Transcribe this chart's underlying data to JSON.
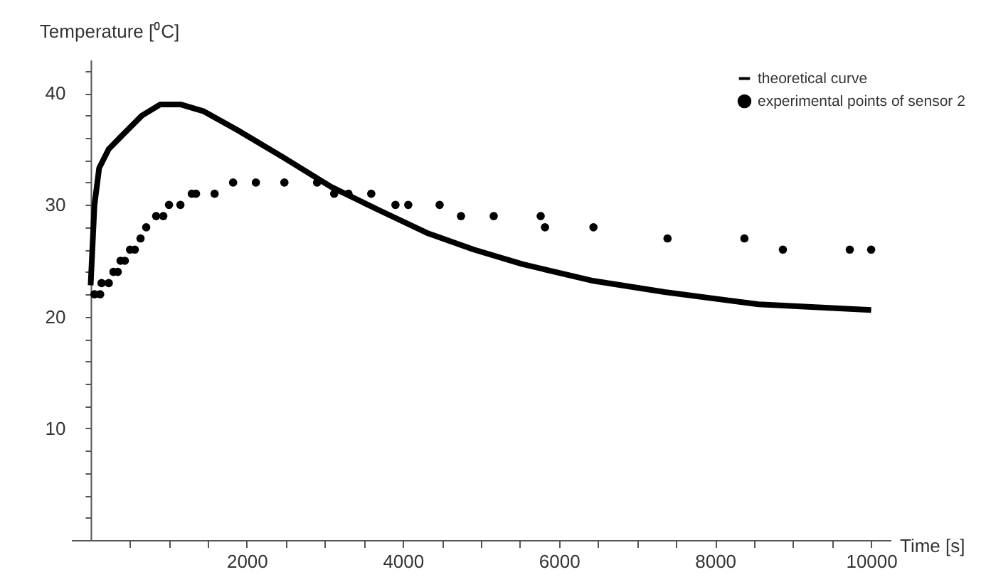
{
  "chart_data": {
    "type": "scatter",
    "xlabel": "Time [s]",
    "ylabel": "Temperature [⁰C]",
    "xlim": [
      -250,
      10250
    ],
    "ylim": [
      0,
      43
    ],
    "xticks": [
      {
        "value": 500,
        "label": null
      },
      {
        "value": 1000,
        "label": null
      },
      {
        "value": 1500,
        "label": null
      },
      2000,
      {
        "value": 2500,
        "label": null
      },
      {
        "value": 3000,
        "label": null
      },
      {
        "value": 3500,
        "label": null
      },
      4000,
      {
        "value": 4500,
        "label": null
      },
      {
        "value": 5000,
        "label": null
      },
      {
        "value": 5500,
        "label": null
      },
      6000,
      {
        "value": 6500,
        "label": null
      },
      {
        "value": 7000,
        "label": null
      },
      {
        "value": 7500,
        "label": null
      },
      8000,
      {
        "value": 8500,
        "label": null
      },
      {
        "value": 9000,
        "label": null
      },
      {
        "value": 9500,
        "label": null
      },
      10000
    ],
    "yticks": [
      {
        "value": 2,
        "label": null
      },
      {
        "value": 4,
        "label": null
      },
      {
        "value": 6,
        "label": null
      },
      {
        "value": 8,
        "label": null
      },
      10,
      {
        "value": 12,
        "label": null
      },
      {
        "value": 14,
        "label": null
      },
      {
        "value": 16,
        "label": null
      },
      {
        "value": 18,
        "label": null
      },
      20,
      {
        "value": 22,
        "label": null
      },
      {
        "value": 24,
        "label": null
      },
      {
        "value": 26,
        "label": null
      },
      {
        "value": 28,
        "label": null
      },
      30,
      {
        "value": 32,
        "label": null
      },
      {
        "value": 34,
        "label": null
      },
      {
        "value": 36,
        "label": null
      },
      {
        "value": 38,
        "label": null
      },
      40,
      {
        "value": 42,
        "label": null
      }
    ],
    "grid": false,
    "legend": "top right",
    "series": [
      {
        "name": "theoretical curve",
        "type": "line",
        "color": "#000000",
        "marker": "none",
        "line_style": "solid",
        "x": [
          0,
          49,
          109,
          232,
          414,
          657,
          894,
          1150,
          1442,
          1880,
          2482,
          3084,
          3704,
          4307,
          4909,
          5529,
          6442,
          7354,
          8558,
          10000
        ],
        "values": [
          22.8,
          30,
          33.3,
          35,
          36.3,
          38,
          39,
          39,
          38.4,
          36.7,
          34.2,
          31.6,
          29.5,
          27.5,
          26,
          24.7,
          23.2,
          22.2,
          21.1,
          20.6
        ]
      },
      {
        "name": "experimental points of sensor 2",
        "type": "scatter",
        "color": "#000000",
        "marker": "circle",
        "x": [
          49,
          122,
          140,
          232,
          292,
          347,
          383,
          438,
          505,
          566,
          639,
          712,
          839,
          931,
          1004,
          1150,
          1296,
          1350,
          1588,
          1825,
          2117,
          2482,
          2901,
          3120,
          3303,
          3595,
          3905,
          4069,
          4471,
          4745,
          5164,
          5766,
          5821,
          6442,
          7391,
          8376,
          8869,
          9726,
          10000
        ],
        "values": [
          22,
          22,
          23,
          23,
          24,
          24,
          25,
          25,
          26,
          26,
          27,
          28,
          29,
          29,
          30,
          30,
          31,
          31,
          31,
          32,
          32,
          32,
          32,
          31,
          31,
          31,
          30,
          30,
          30,
          29,
          29,
          29,
          28,
          28,
          27,
          27,
          26,
          26,
          26
        ]
      }
    ]
  }
}
